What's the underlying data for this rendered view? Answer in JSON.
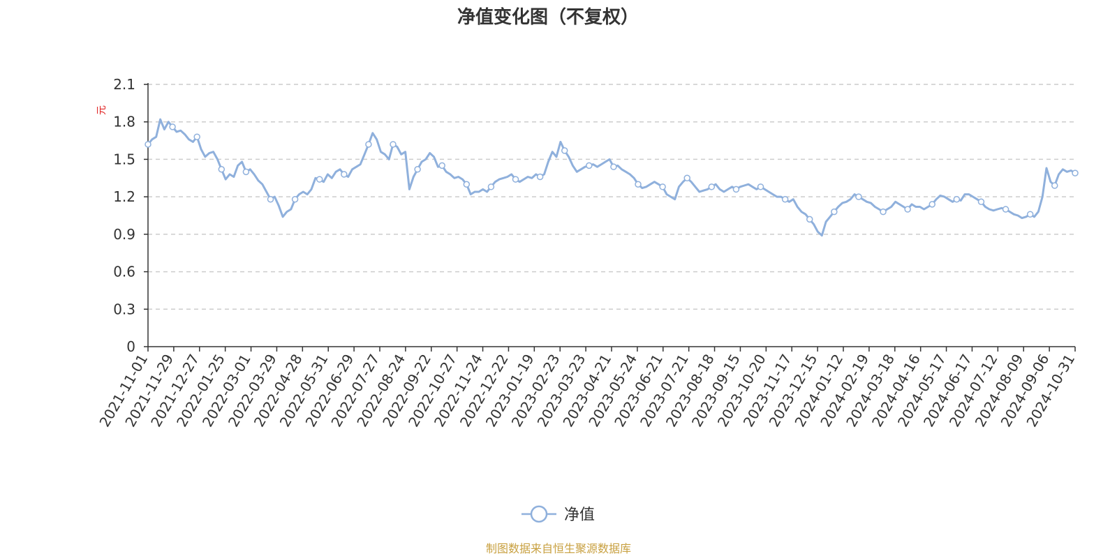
{
  "chart_data": {
    "type": "line",
    "title": "净值变化图（不复权）",
    "ylabel": "元",
    "ylim": [
      0,
      2.1
    ],
    "yticks": [
      "0",
      "0.3",
      "0.6",
      "0.9",
      "1.2",
      "1.5",
      "1.8",
      "2.1"
    ],
    "grid": true,
    "legend_position": "bottom-center",
    "x_ticks": [
      "2021-11-01",
      "2021-11-29",
      "2021-12-27",
      "2022-01-25",
      "2022-03-01",
      "2022-03-29",
      "2022-04-28",
      "2022-05-31",
      "2022-06-29",
      "2022-07-27",
      "2022-08-24",
      "2022-09-22",
      "2022-10-27",
      "2022-11-24",
      "2022-12-22",
      "2023-01-19",
      "2023-02-23",
      "2023-03-23",
      "2023-04-21",
      "2023-05-24",
      "2023-06-21",
      "2023-07-21",
      "2023-08-18",
      "2023-09-15",
      "2023-10-20",
      "2023-11-17",
      "2023-12-15",
      "2024-01-12",
      "2024-02-19",
      "2024-03-18",
      "2024-04-16",
      "2024-05-17",
      "2024-06-17",
      "2024-07-12",
      "2024-08-09",
      "2024-09-06",
      "2024-10-31"
    ],
    "series": [
      {
        "name": "净值",
        "color": "#8fb0dc",
        "values": [
          1.62,
          1.66,
          1.68,
          1.82,
          1.74,
          1.8,
          1.76,
          1.72,
          1.73,
          1.7,
          1.66,
          1.64,
          1.68,
          1.58,
          1.52,
          1.55,
          1.56,
          1.5,
          1.42,
          1.34,
          1.38,
          1.36,
          1.45,
          1.48,
          1.4,
          1.42,
          1.38,
          1.33,
          1.3,
          1.24,
          1.18,
          1.2,
          1.13,
          1.04,
          1.08,
          1.1,
          1.18,
          1.22,
          1.24,
          1.22,
          1.26,
          1.35,
          1.34,
          1.32,
          1.38,
          1.35,
          1.4,
          1.42,
          1.38,
          1.36,
          1.42,
          1.44,
          1.46,
          1.54,
          1.62,
          1.71,
          1.66,
          1.56,
          1.54,
          1.5,
          1.62,
          1.6,
          1.54,
          1.56,
          1.26,
          1.36,
          1.42,
          1.48,
          1.5,
          1.55,
          1.52,
          1.44,
          1.45,
          1.4,
          1.38,
          1.35,
          1.36,
          1.34,
          1.3,
          1.22,
          1.24,
          1.24,
          1.26,
          1.24,
          1.28,
          1.32,
          1.34,
          1.35,
          1.36,
          1.38,
          1.34,
          1.32,
          1.34,
          1.36,
          1.35,
          1.38,
          1.36,
          1.38,
          1.48,
          1.56,
          1.52,
          1.64,
          1.57,
          1.52,
          1.45,
          1.4,
          1.42,
          1.44,
          1.45,
          1.46,
          1.44,
          1.46,
          1.48,
          1.5,
          1.44,
          1.45,
          1.42,
          1.4,
          1.38,
          1.35,
          1.3,
          1.27,
          1.28,
          1.3,
          1.32,
          1.3,
          1.28,
          1.22,
          1.2,
          1.18,
          1.28,
          1.32,
          1.35,
          1.32,
          1.28,
          1.24,
          1.25,
          1.26,
          1.28,
          1.3,
          1.26,
          1.24,
          1.26,
          1.28,
          1.26,
          1.28,
          1.29,
          1.3,
          1.28,
          1.26,
          1.28,
          1.26,
          1.24,
          1.22,
          1.2,
          1.2,
          1.18,
          1.16,
          1.18,
          1.12,
          1.08,
          1.06,
          1.02,
          0.98,
          0.92,
          0.89,
          1.0,
          1.04,
          1.08,
          1.12,
          1.15,
          1.16,
          1.18,
          1.22,
          1.2,
          1.18,
          1.16,
          1.15,
          1.12,
          1.1,
          1.08,
          1.1,
          1.12,
          1.16,
          1.14,
          1.12,
          1.1,
          1.14,
          1.12,
          1.12,
          1.1,
          1.12,
          1.14,
          1.18,
          1.21,
          1.2,
          1.18,
          1.16,
          1.18,
          1.17,
          1.22,
          1.22,
          1.2,
          1.18,
          1.16,
          1.12,
          1.1,
          1.09,
          1.1,
          1.11,
          1.1,
          1.08,
          1.06,
          1.05,
          1.03,
          1.04,
          1.06,
          1.04,
          1.08,
          1.2,
          1.43,
          1.32,
          1.29,
          1.38,
          1.42,
          1.4,
          1.41,
          1.39
        ]
      }
    ]
  },
  "footer": {
    "source": "制图数据来自恒生聚源数据库"
  }
}
